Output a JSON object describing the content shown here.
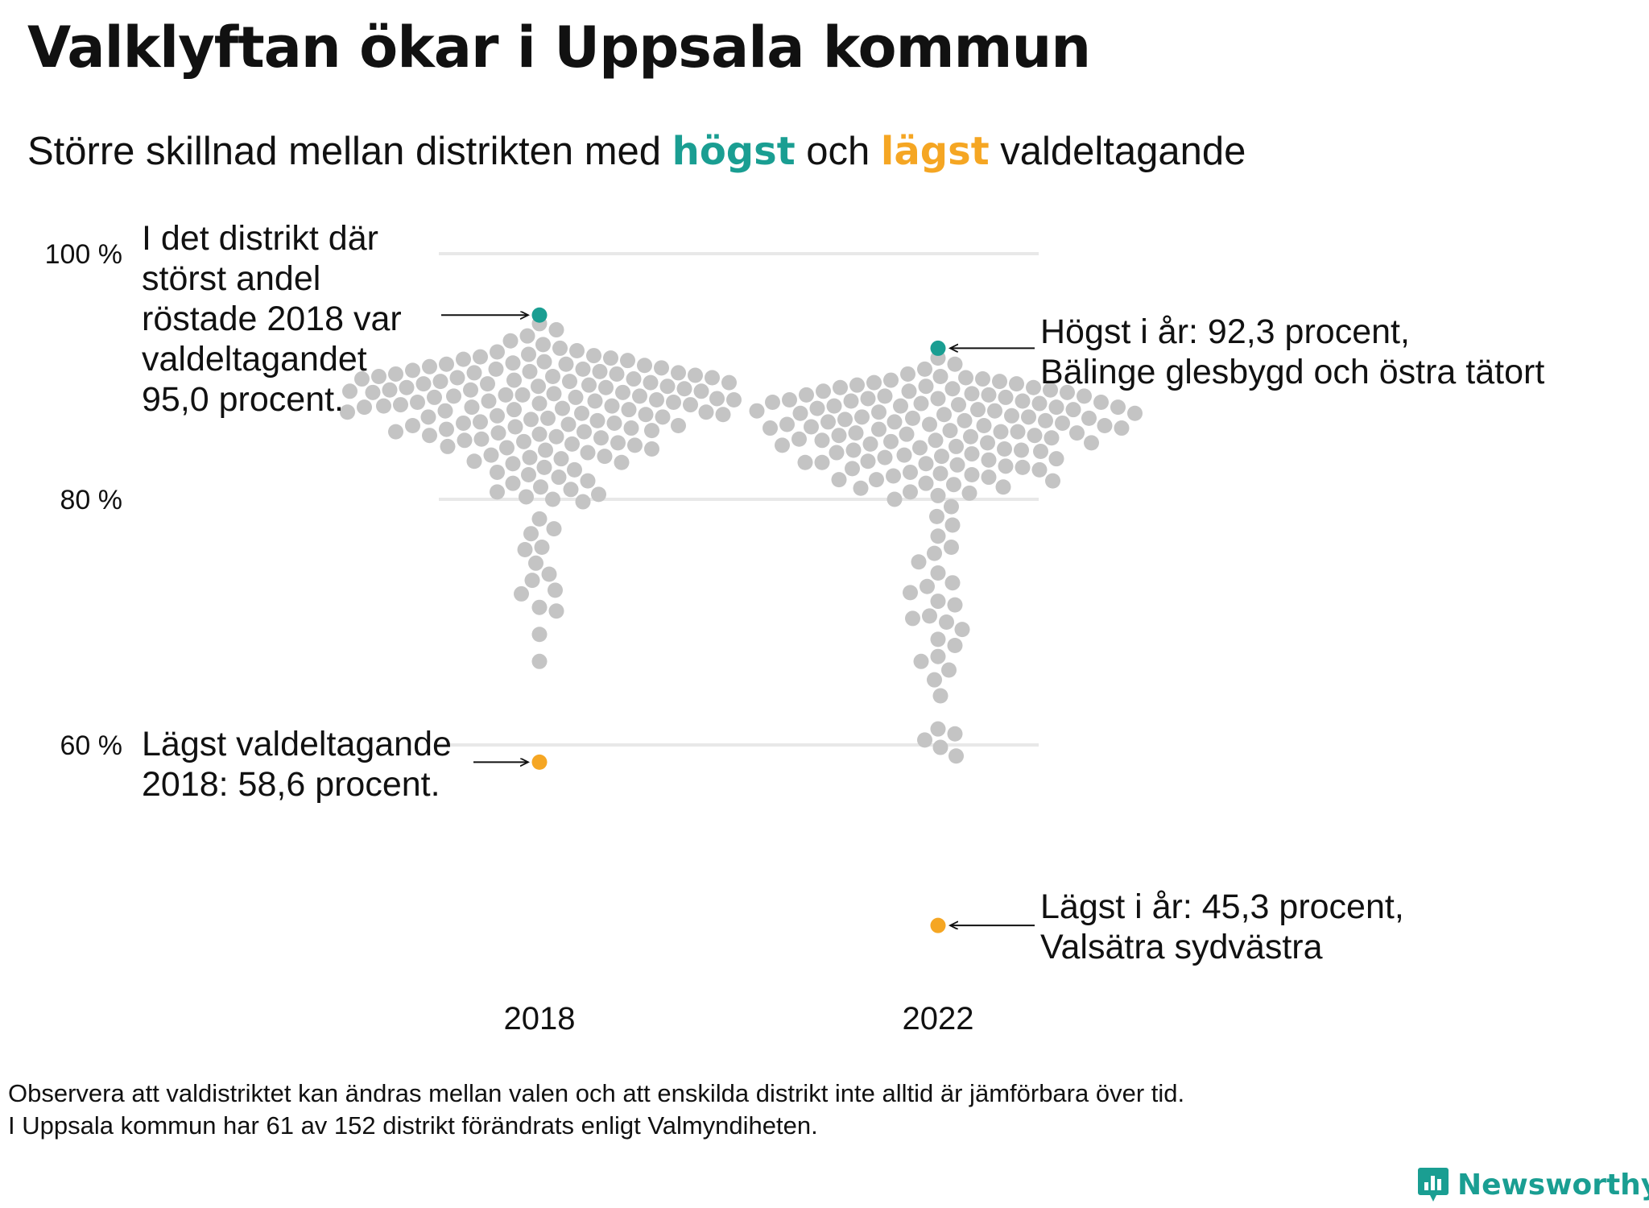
{
  "title": "Valklyftan ökar i Uppsala kommun",
  "subtitle": {
    "part1": "Större  skillnad  mellan  distrikten  med ",
    "high_word": "högst",
    "part2": " och ",
    "low_word": "lägst",
    "part3": " valdeltagande"
  },
  "colors": {
    "high": "#1a9e92",
    "low": "#f5a623",
    "dots": "#c4c4c4",
    "grid": "#e8e8e8"
  },
  "chart_data": {
    "type": "scatter",
    "subtype": "beeswarm",
    "categories": [
      "2018",
      "2022"
    ],
    "ylim": [
      42,
      100
    ],
    "y_ticks": [
      {
        "value": 100,
        "label": "100 %"
      },
      {
        "value": 80,
        "label": "80 %"
      },
      {
        "value": 60,
        "label": "60 %"
      }
    ],
    "grid": true,
    "series": [
      {
        "category": "2018",
        "highest": 95.0,
        "lowest": 58.6,
        "values": [
          66.8,
          69.0,
          70.9,
          71.2,
          72.3,
          72.6,
          73.4,
          73.9,
          74.8,
          75.9,
          76.1,
          77.2,
          77.6,
          78.4,
          79.8,
          80.0,
          80.2,
          80.4,
          80.6,
          80.8,
          81.0,
          81.3,
          81.5,
          81.8,
          82.0,
          82.2,
          82.4,
          82.6,
          82.9,
          83.1,
          83.3,
          83.5,
          83.8,
          84.0,
          84.2,
          84.4,
          84.7,
          84.9,
          85.1,
          85.3,
          85.5,
          85.7,
          85.9,
          86.1,
          86.3,
          86.5,
          86.7,
          86.9,
          87.1,
          87.3,
          87.5,
          87.7,
          87.9,
          88.1,
          88.3,
          88.5,
          88.7,
          88.9,
          89.0,
          89.2,
          89.4,
          89.6,
          89.8,
          90.0,
          90.2,
          90.4,
          90.6,
          90.8,
          91.0,
          91.2,
          91.4,
          91.6,
          91.8,
          92.0,
          92.3,
          92.6,
          92.9,
          93.3,
          93.8,
          94.3,
          86.0,
          86.2,
          86.6,
          87.0,
          87.4,
          87.8,
          88.2,
          88.6,
          89.1,
          89.5,
          89.9,
          90.3,
          90.7,
          91.1,
          85.4,
          85.8,
          86.4,
          86.8,
          87.2,
          87.6,
          88.0,
          88.4,
          88.8,
          89.3,
          89.7,
          90.1,
          90.5,
          90.9,
          91.3,
          91.7,
          84.5,
          84.8,
          85.2,
          85.6,
          86.9,
          87.3,
          87.7,
          88.1,
          88.5,
          88.9,
          89.4,
          89.8,
          90.2,
          90.6,
          91.5,
          92.1,
          83.6,
          84.1,
          84.6,
          85.0,
          86.2,
          86.7,
          87.1,
          87.5,
          87.9,
          88.3,
          88.7,
          89.1,
          89.5,
          89.9,
          90.4,
          91.0,
          83.0,
          83.4,
          84.3,
          85.5,
          86.0,
          87.6,
          88.0,
          88.4,
          88.8,
          89.2,
          89.6,
          90.0,
          90.3
        ]
      },
      {
        "category": "2022",
        "highest": 92.3,
        "lowest": 45.3,
        "values": [
          59.1,
          59.8,
          60.4,
          60.9,
          61.3,
          64.0,
          65.3,
          66.1,
          66.8,
          67.2,
          68.1,
          68.6,
          69.4,
          70.0,
          70.3,
          70.5,
          71.4,
          71.7,
          72.4,
          72.9,
          73.2,
          74.0,
          74.9,
          75.6,
          76.1,
          77.0,
          77.9,
          78.6,
          79.4,
          80.0,
          80.3,
          80.6,
          80.9,
          81.2,
          81.5,
          81.8,
          82.1,
          82.4,
          82.7,
          83.0,
          83.3,
          83.6,
          83.9,
          84.2,
          84.5,
          84.8,
          85.1,
          85.4,
          85.7,
          86.0,
          86.3,
          86.6,
          86.9,
          87.2,
          87.5,
          87.8,
          88.1,
          88.4,
          88.7,
          89.0,
          89.3,
          89.6,
          89.9,
          90.2,
          90.6,
          91.0,
          91.5,
          80.5,
          81.0,
          81.6,
          82.2,
          82.8,
          83.4,
          84.0,
          84.6,
          85.2,
          85.8,
          86.4,
          87.0,
          87.6,
          88.2,
          88.8,
          89.4,
          90.0,
          81.3,
          81.9,
          82.5,
          83.1,
          83.7,
          84.3,
          84.9,
          85.5,
          86.1,
          86.7,
          87.3,
          87.9,
          88.5,
          89.1,
          89.7,
          82.0,
          82.6,
          83.2,
          83.8,
          84.4,
          85.0,
          85.6,
          86.2,
          86.8,
          87.4,
          88.0,
          88.6,
          89.2,
          89.8,
          82.9,
          83.5,
          84.1,
          84.7,
          85.3,
          85.9,
          86.5,
          87.1,
          87.7,
          88.3,
          88.9,
          89.5,
          84.0,
          84.6,
          85.2,
          85.8,
          86.4,
          87.0,
          87.6,
          88.2,
          88.8,
          85.5,
          86.1,
          86.7,
          87.3,
          87.9,
          88.5,
          89.1,
          86.0,
          86.6,
          87.2,
          87.8,
          88.4,
          84.8,
          85.4,
          86.3,
          87.5,
          88.0,
          81.6,
          83.0
        ]
      }
    ],
    "annotations": [
      {
        "id": "ann-2018-high",
        "text": "I det distrikt där\nstörst andel\nröstade 2018 var\nvaldeltagandet\n95,0 procent."
      },
      {
        "id": "ann-2018-low",
        "text": "Lägst valdeltagande\n2018: 58,6 procent."
      },
      {
        "id": "ann-2022-high",
        "text": "Högst i år: 92,3 procent,\nBälinge glesbygd och östra tätort"
      },
      {
        "id": "ann-2022-low",
        "text": "Lägst i år: 45,3 procent,\nValsätra sydvästra"
      }
    ]
  },
  "footnote": {
    "line1": "Observera att valdistriktet kan ändras mellan valen och att enskilda distrikt inte alltid är jämförbara över tid.",
    "line2": "I Uppsala kommun har 61 av 152 distrikt förändrats enligt Valmyndiheten."
  },
  "brand": {
    "name": "Newsworthy",
    "icon": "bar-chart-bubble-icon"
  }
}
